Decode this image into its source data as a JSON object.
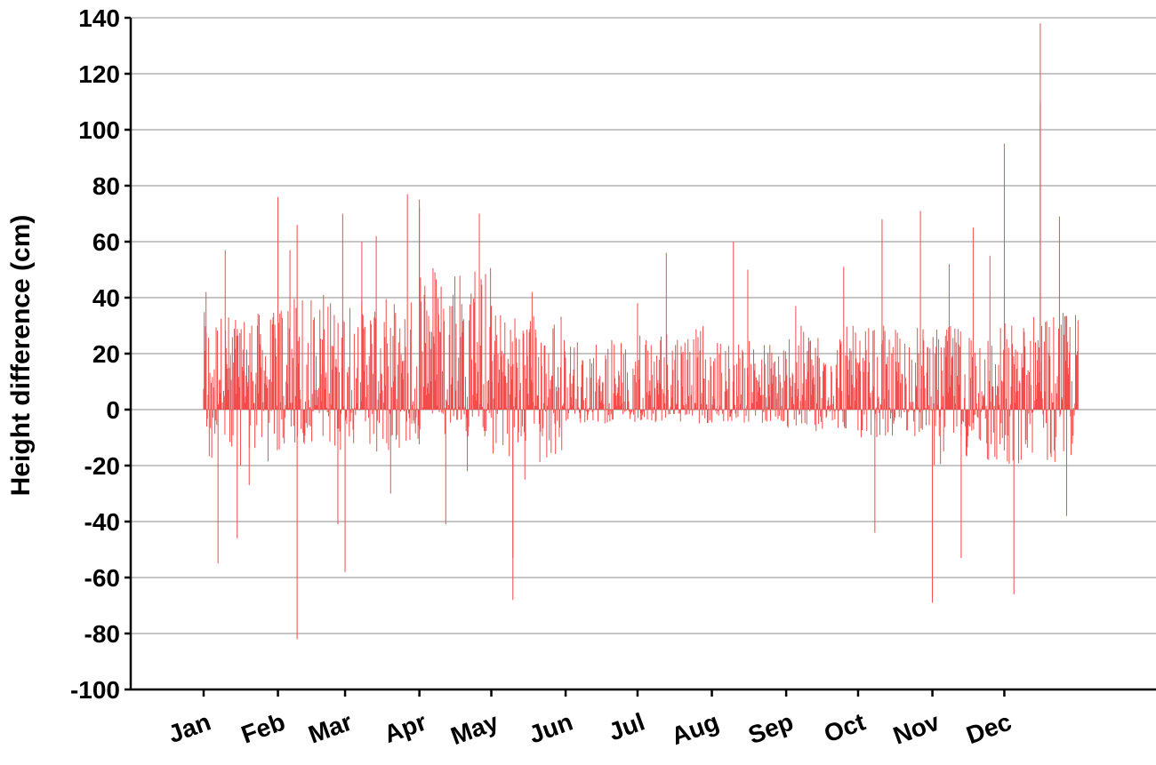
{
  "chart_data": {
    "type": "bar",
    "title": "",
    "xlabel": "",
    "ylabel": "Height difference (cm)",
    "ylim": [
      -100,
      140
    ],
    "yticks": [
      -100,
      -80,
      -60,
      -40,
      -20,
      0,
      20,
      40,
      60,
      80,
      100,
      120,
      140
    ],
    "xticks": [
      "Jan",
      "Feb",
      "Mar",
      "Apr",
      "May",
      "Jun",
      "Jul",
      "Aug",
      "Sep",
      "Oct",
      "Nov",
      "Dec"
    ],
    "grid": true,
    "bar_color": "#f34a4a",
    "series": [
      {
        "description_unit": "day",
        "extreme_values": [
          {
            "x": "Jan 2",
            "y": 42
          },
          {
            "x": "Jan 7",
            "y": -55
          },
          {
            "x": "Jan 10",
            "y": 57
          },
          {
            "x": "Jan 15",
            "y": -46
          },
          {
            "x": "Jan 20",
            "y": -27
          },
          {
            "x": "Feb 1",
            "y": 76
          },
          {
            "x": "Feb 6",
            "y": 57
          },
          {
            "x": "Feb 9",
            "y": 66
          },
          {
            "x": "Feb 9",
            "y": -82
          },
          {
            "x": "Feb 20",
            "y": 41
          },
          {
            "x": "Feb 26",
            "y": -41
          },
          {
            "x": "Feb 28",
            "y": 70
          },
          {
            "x": "Mar 1",
            "y": -58
          },
          {
            "x": "Mar 8",
            "y": 60
          },
          {
            "x": "Mar 14",
            "y": 62
          },
          {
            "x": "Mar 20",
            "y": -30
          },
          {
            "x": "Mar 27",
            "y": 77
          },
          {
            "x": "Apr 1",
            "y": 75
          },
          {
            "x": "Apr 1",
            "y": 72
          },
          {
            "x": "Apr 12",
            "y": -41
          },
          {
            "x": "Apr 21",
            "y": -22
          },
          {
            "x": "Apr 26",
            "y": 70
          },
          {
            "x": "May 1",
            "y": 37
          },
          {
            "x": "May 10",
            "y": -68
          },
          {
            "x": "May 10",
            "y": -53
          },
          {
            "x": "May 15",
            "y": -25
          },
          {
            "x": "May 18",
            "y": 42
          },
          {
            "x": "Jul 1",
            "y": 38
          },
          {
            "x": "Jul 13",
            "y": 56
          },
          {
            "x": "Aug 10",
            "y": 60
          },
          {
            "x": "Aug 16",
            "y": 50
          },
          {
            "x": "Sep 5",
            "y": 37
          },
          {
            "x": "Sep 25",
            "y": 51
          },
          {
            "x": "Oct 8",
            "y": -44
          },
          {
            "x": "Oct 11",
            "y": 68
          },
          {
            "x": "Oct 27",
            "y": 71
          },
          {
            "x": "Nov 1",
            "y": -69
          },
          {
            "x": "Nov 8",
            "y": 52
          },
          {
            "x": "Nov 13",
            "y": -53
          },
          {
            "x": "Nov 18",
            "y": 65
          },
          {
            "x": "Nov 25",
            "y": 55
          },
          {
            "x": "Dec 1",
            "y": 95
          },
          {
            "x": "Dec 5",
            "y": -66
          },
          {
            "x": "Dec 16",
            "y": 138
          },
          {
            "x": "Dec 16",
            "y": 110
          },
          {
            "x": "Dec 24",
            "y": 69
          },
          {
            "x": "Dec 27",
            "y": -38
          }
        ],
        "typical_range_by_month": [
          {
            "month": "Jan",
            "low": -20,
            "high": 35
          },
          {
            "month": "Feb",
            "low": -15,
            "high": 40
          },
          {
            "month": "Mar",
            "low": -15,
            "high": 40
          },
          {
            "month": "Apr",
            "low": -10,
            "high": 55
          },
          {
            "month": "May",
            "low": -20,
            "high": 35
          },
          {
            "month": "Jun",
            "low": -5,
            "high": 25
          },
          {
            "month": "Jul",
            "low": -5,
            "high": 30
          },
          {
            "month": "Aug",
            "low": -5,
            "high": 25
          },
          {
            "month": "Sep",
            "low": -8,
            "high": 30
          },
          {
            "month": "Oct",
            "low": -10,
            "high": 30
          },
          {
            "month": "Nov",
            "low": -20,
            "high": 30
          },
          {
            "month": "Dec",
            "low": -20,
            "high": 35
          }
        ]
      }
    ]
  }
}
